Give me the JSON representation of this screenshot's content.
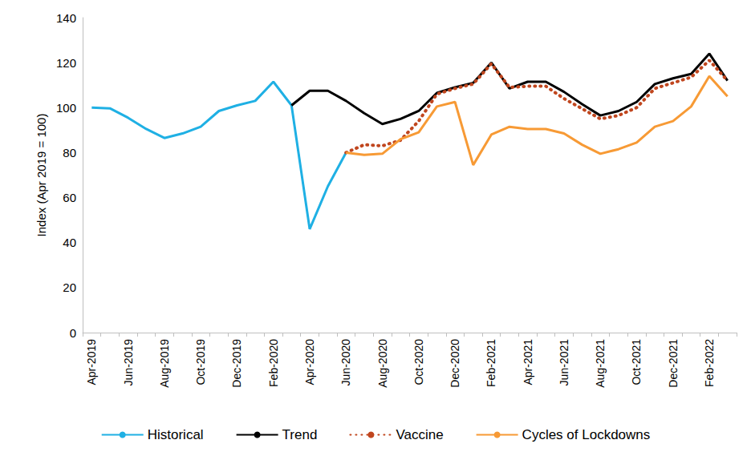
{
  "chart_data": {
    "type": "line",
    "y_label": "Index (Apr 2019 = 100)",
    "categories": [
      "Apr-2019",
      null,
      "Jun-2019",
      null,
      "Aug-2019",
      null,
      "Oct-2019",
      null,
      "Dec-2019",
      null,
      "Feb-2020",
      null,
      "Apr-2020",
      null,
      "Jun-2020",
      null,
      "Aug-2020",
      null,
      "Oct-2020",
      null,
      "Dec-2020",
      null,
      "Feb-2021",
      null,
      "Apr-2021",
      null,
      "Jun-2021",
      null,
      "Aug-2021",
      null,
      "Oct-2021",
      null,
      "Dec-2021",
      null,
      "Feb-2022",
      null
    ],
    "series": [
      {
        "name": "Historical",
        "color": "#1fb0e4",
        "line_style": "solid",
        "values": [
          100,
          99.7,
          95.5,
          90.5,
          86.5,
          88.5,
          91.5,
          98.5,
          101,
          103,
          111.5,
          101,
          46,
          65,
          80,
          null,
          null,
          null,
          null,
          null,
          null,
          null,
          null,
          null,
          null,
          null,
          null,
          null,
          null,
          null,
          null,
          null,
          null,
          null,
          null,
          null
        ]
      },
      {
        "name": "Trend",
        "color": "#000000",
        "line_style": "solid",
        "values": [
          null,
          null,
          null,
          null,
          null,
          null,
          null,
          null,
          null,
          null,
          null,
          101,
          107.5,
          107.5,
          103,
          97.5,
          92.7,
          95,
          98.5,
          106.5,
          109,
          111,
          120,
          108.5,
          111.5,
          111.5,
          107,
          101.5,
          96.5,
          98.5,
          102.5,
          110.5,
          113,
          115,
          124,
          112
        ]
      },
      {
        "name": "Vaccine",
        "color": "#c0461e",
        "line_style": "dotted",
        "values": [
          null,
          null,
          null,
          null,
          null,
          null,
          null,
          null,
          null,
          null,
          null,
          null,
          null,
          null,
          80,
          83.5,
          83,
          85.5,
          94,
          106,
          108.5,
          110.5,
          119.5,
          109,
          109.5,
          109.5,
          104,
          99.5,
          95,
          96.5,
          100,
          108.5,
          111,
          113.5,
          121,
          112
        ]
      },
      {
        "name": "Cycles of Lockdowns",
        "color": "#f79a35",
        "line_style": "solid",
        "values": [
          null,
          null,
          null,
          null,
          null,
          null,
          null,
          null,
          null,
          null,
          null,
          null,
          null,
          null,
          80,
          79,
          79.5,
          86,
          89,
          100.5,
          102.5,
          74.5,
          88,
          91.5,
          90.5,
          90.5,
          88.5,
          83.5,
          79.5,
          81.5,
          84.5,
          91.5,
          94,
          100.5,
          114,
          105
        ]
      }
    ],
    "ylim": [
      0,
      140
    ],
    "yticks": [
      0,
      20,
      40,
      60,
      80,
      100,
      120,
      140
    ],
    "grid": false,
    "legend": "bottom",
    "marker": "none"
  }
}
